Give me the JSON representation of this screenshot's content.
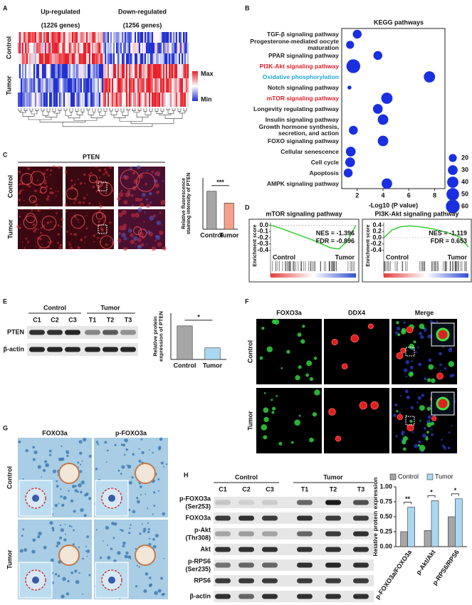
{
  "chart_data": [
    {
      "type": "scatter",
      "title": "KEGG pathways",
      "categories": [
        "TGF-β signaling pathway",
        "Progesterone-mediated oocyte maturation",
        "PPAR signaling pathway",
        "PI3K-Akt signaling pathway",
        "Oxidative phosphorylation",
        "Notch signaling pathway",
        "mTOR signaling pathway",
        "Longevity regulating pathway",
        "Insulin signaling pathway",
        "Growth hormone synthesis, secretion, and action",
        "FOXO signaling pathway",
        "Cellular senescence",
        "Cell cycle",
        "Apoptosis",
        "AMPK signaling pathway"
      ],
      "category_colors": [
        "#222222",
        "#222222",
        "#222222",
        "#e0202a",
        "#1ea8d8",
        "#222222",
        "#e0202a",
        "#222222",
        "#222222",
        "#222222",
        "#222222",
        "#222222",
        "#222222",
        "#222222",
        "#222222"
      ],
      "x": [
        2.0,
        1.45,
        3.6,
        1.7,
        7.6,
        1.4,
        4.3,
        3.6,
        4.0,
        1.7,
        4.0,
        1.5,
        1.45,
        1.3,
        4.3
      ],
      "sizes": [
        25,
        20,
        25,
        60,
        40,
        5,
        40,
        30,
        35,
        25,
        35,
        30,
        30,
        25,
        35
      ],
      "color": "#1a2fe0",
      "xlabel": "-Log10 (P value)",
      "xlim": [
        0.8,
        8.8
      ],
      "xticks": [
        2,
        4,
        6,
        8
      ],
      "size_legend": [
        20,
        30,
        40,
        50,
        60
      ]
    },
    {
      "type": "bar",
      "categories": [
        "Control",
        "Tumor"
      ],
      "values": [
        7.4,
        5.1
      ],
      "colors": [
        "#a6a6a6",
        "#f4a08a"
      ],
      "ylabel": "Relative fluorescence staining intensity of PTEN",
      "ylim": [
        0,
        10
      ],
      "annotations": [
        "***"
      ]
    },
    {
      "type": "line",
      "title": "mTOR signaling pathway",
      "ylabel": "Enrichment score",
      "color": "#22cc22",
      "x": [
        0,
        10,
        20,
        30,
        40,
        50,
        60,
        70,
        80,
        90,
        100
      ],
      "values": [
        0,
        -0.04,
        -0.09,
        -0.14,
        -0.19,
        -0.24,
        -0.3,
        -0.36,
        -0.38,
        -0.25,
        0
      ],
      "xlim": [
        0,
        100
      ],
      "ylim": [
        -0.45,
        0.05
      ],
      "yticks": [
        {
          "value": 0,
          "label": "0.0"
        },
        -0.1,
        -0.2,
        -0.3,
        -0.4
      ],
      "annotations": [
        "NES = -1.396",
        "FDR = -0.896"
      ],
      "legend_labels": [
        "Control",
        "Tumor"
      ]
    },
    {
      "type": "line",
      "title": "PI3K-Akt signaling pathway",
      "ylabel": "Enrichment score",
      "color": "#22cc22",
      "x": [
        0,
        10,
        20,
        30,
        40,
        50,
        60,
        70,
        80,
        90,
        100
      ],
      "values": [
        0,
        0.25,
        0.35,
        0.38,
        0.36,
        0.32,
        0.27,
        0.2,
        0.12,
        0.02,
        -0.3
      ],
      "xlim": [
        0,
        100
      ],
      "ylim": [
        -0.5,
        0.5
      ],
      "yticks": [
        0.4,
        0.2,
        {
          "value": 0,
          "label": "0.0"
        },
        -0.2,
        -0.4
      ],
      "annotations": [
        "NES = -1.119",
        "FDR = 0.653"
      ],
      "legend_labels": [
        "Control",
        "Tumor"
      ]
    },
    {
      "type": "bar",
      "categories": [
        "Control",
        "Tumor"
      ],
      "values": [
        1.45,
        0.5
      ],
      "colors": [
        "#a6a6a6",
        "#a9d8f0"
      ],
      "ylabel": "Relative protein expression of PTEN",
      "ylim": [
        0,
        2
      ],
      "annotations": [
        "*"
      ]
    },
    {
      "type": "bar",
      "categories": [
        "p-FOXO3a/FOXO3a",
        "p-Akt/Akt",
        "p-RPS6/RPS6"
      ],
      "series": [
        {
          "name": "Control",
          "color": "#a6a6a6",
          "values": [
            0.25,
            0.27,
            0.5
          ]
        },
        {
          "name": "Tumor",
          "color": "#a9d8f0",
          "values": [
            0.66,
            0.77,
            0.8
          ]
        }
      ],
      "ylabel": "Relative protein expression",
      "ylim": [
        0,
        1
      ],
      "yticks": [
        {
          "value": 0,
          "label": "0.00"
        },
        {
          "value": 0.25,
          "label": "0.25"
        },
        {
          "value": 0.5,
          "label": "0.50"
        },
        {
          "value": 0.75,
          "label": "0.75"
        },
        {
          "value": 1,
          "label": "1.00"
        }
      ],
      "annotations": [
        "**",
        "*",
        "*"
      ],
      "legend": "top"
    }
  ],
  "panels": {
    "A": {
      "letter": "A",
      "up": "Up-regulated",
      "up_count": "(1226 genes)",
      "down": "Down-regulated",
      "down_count": "(1256 genes)",
      "rows": [
        "Control",
        "Tumor"
      ],
      "legend": [
        "Max",
        "Min"
      ]
    },
    "B": {
      "letter": "B"
    },
    "C": {
      "letter": "C",
      "title": "PTEN",
      "rows": [
        "Control",
        "Tumor"
      ]
    },
    "D": {
      "letter": "D"
    },
    "E": {
      "letter": "E",
      "groups": [
        "Control",
        "Tumor"
      ],
      "lanes": [
        "C1",
        "C2",
        "C3",
        "T1",
        "T2",
        "T3"
      ],
      "bands": [
        "PTEN",
        "β-actin"
      ]
    },
    "F": {
      "letter": "F",
      "columns": [
        "FOXO3a",
        "DDX4",
        "Merge"
      ],
      "rows": [
        "Control",
        "Tumor"
      ]
    },
    "G": {
      "letter": "G",
      "columns": [
        "FOXO3a",
        "p-FOXO3a"
      ],
      "rows": [
        "Control",
        "Tumor"
      ]
    },
    "H": {
      "letter": "H",
      "groups": [
        "Control",
        "Tumor"
      ],
      "lanes": [
        "C1",
        "C2",
        "C3",
        "T1",
        "T2",
        "T3"
      ],
      "bands": [
        "p-FOXO3a",
        "(Ser253)",
        "FOXO3a",
        "p-Akt",
        "(Thr308)",
        "Akt",
        "p-RPS6",
        "(Ser235)",
        "RPS6",
        "β-actin"
      ]
    }
  }
}
